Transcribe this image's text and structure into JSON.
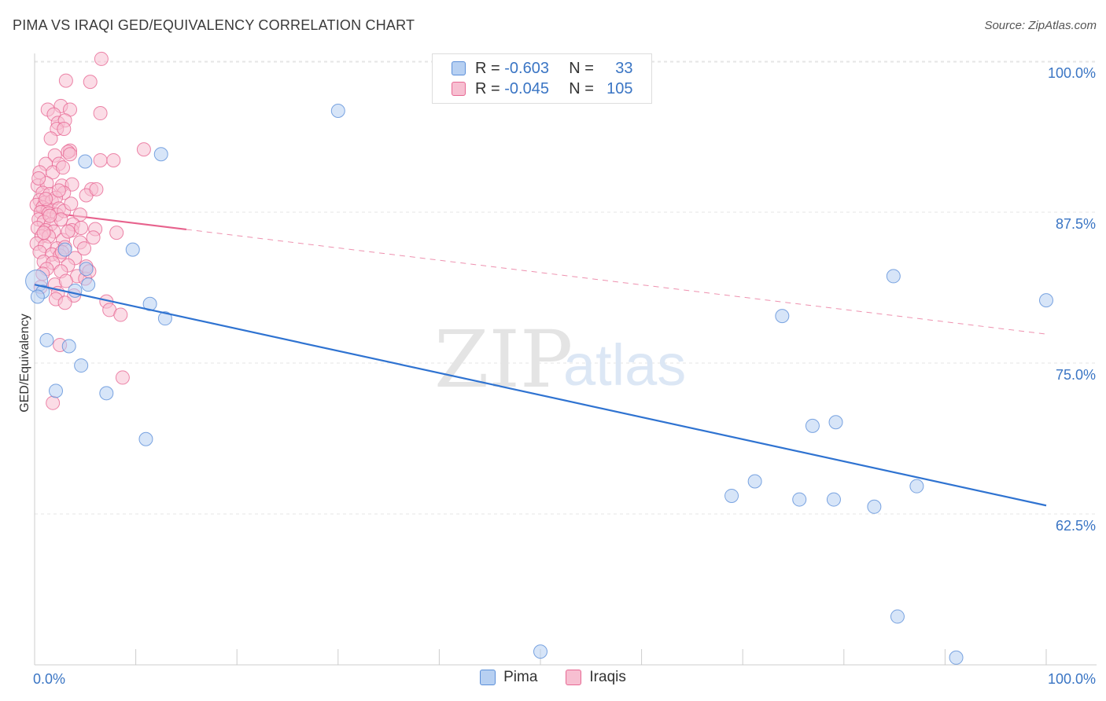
{
  "chart_data": {
    "type": "scatter",
    "title": "PIMA VS IRAQI GED/EQUIVALENCY CORRELATION CHART",
    "source": "Source: ZipAtlas.com",
    "xlabel": "",
    "ylabel": "GED/Equivalency",
    "xlim": [
      0,
      100
    ],
    "ylim": [
      49,
      101
    ],
    "x_tick_labels": [
      "0.0%",
      "100.0%"
    ],
    "y_ticks": [
      {
        "value": 100,
        "label": "100.0%"
      },
      {
        "value": 87.5,
        "label": "87.5%"
      },
      {
        "value": 75,
        "label": "75.0%"
      },
      {
        "value": 62.5,
        "label": "62.5%"
      }
    ],
    "watermark": {
      "zip": "ZIP",
      "atlas": "atlas"
    },
    "series": [
      {
        "name": "Pima",
        "color": "#5b8fd9",
        "fill": "#b7d0f2",
        "R": "-0.603",
        "N": "33",
        "trend": {
          "x0": 0,
          "y0": 81.5,
          "x1": 100,
          "y1": 63.2,
          "dashed_from": null
        },
        "points": [
          [
            0.2,
            81.8
          ],
          [
            0.8,
            80.9
          ],
          [
            1.2,
            76.9
          ],
          [
            3.4,
            76.4
          ],
          [
            2.1,
            72.7
          ],
          [
            4.0,
            81.0
          ],
          [
            5.3,
            81.5
          ],
          [
            5.1,
            82.8
          ],
          [
            3.0,
            84.4
          ],
          [
            4.6,
            74.8
          ],
          [
            7.1,
            72.5
          ],
          [
            9.7,
            84.4
          ],
          [
            11.4,
            79.9
          ],
          [
            12.9,
            78.7
          ],
          [
            11.0,
            68.7
          ],
          [
            12.5,
            92.3
          ],
          [
            5.0,
            91.7
          ],
          [
            30.0,
            95.9
          ],
          [
            50.0,
            51.1
          ],
          [
            68.9,
            64.0
          ],
          [
            71.2,
            65.2
          ],
          [
            73.9,
            78.9
          ],
          [
            75.6,
            63.7
          ],
          [
            76.9,
            69.8
          ],
          [
            79.0,
            63.7
          ],
          [
            79.2,
            70.1
          ],
          [
            83.0,
            63.1
          ],
          [
            84.9,
            82.2
          ],
          [
            85.3,
            54.0
          ],
          [
            87.2,
            64.8
          ],
          [
            91.1,
            50.6
          ],
          [
            100.0,
            80.2
          ],
          [
            0.3,
            80.5
          ]
        ]
      },
      {
        "name": "Iraqis",
        "color": "#e76893",
        "fill": "#f7bfd1",
        "R": "-0.045",
        "N": "105",
        "trend": {
          "x0": 0,
          "y0": 87.6,
          "x1": 100,
          "y1": 77.4,
          "solid_to": 15
        },
        "points": [
          [
            6.6,
            100.2
          ],
          [
            3.1,
            98.4
          ],
          [
            5.5,
            98.3
          ],
          [
            1.3,
            96.0
          ],
          [
            2.6,
            96.3
          ],
          [
            3.5,
            96.0
          ],
          [
            1.9,
            95.6
          ],
          [
            6.5,
            95.7
          ],
          [
            2.3,
            94.9
          ],
          [
            3.0,
            95.1
          ],
          [
            2.2,
            94.4
          ],
          [
            2.9,
            94.4
          ],
          [
            3.5,
            92.6
          ],
          [
            3.3,
            92.5
          ],
          [
            10.8,
            92.7
          ],
          [
            2.0,
            92.2
          ],
          [
            1.1,
            91.5
          ],
          [
            2.4,
            91.5
          ],
          [
            6.5,
            91.8
          ],
          [
            7.8,
            91.8
          ],
          [
            0.5,
            90.8
          ],
          [
            1.8,
            90.8
          ],
          [
            2.8,
            91.2
          ],
          [
            0.3,
            89.7
          ],
          [
            1.2,
            89.9
          ],
          [
            2.7,
            89.7
          ],
          [
            3.7,
            89.8
          ],
          [
            5.6,
            89.4
          ],
          [
            0.8,
            89.1
          ],
          [
            1.5,
            89.0
          ],
          [
            2.9,
            89.1
          ],
          [
            5.1,
            88.9
          ],
          [
            0.5,
            88.5
          ],
          [
            1.0,
            88.3
          ],
          [
            1.7,
            88.4
          ],
          [
            2.1,
            88.7
          ],
          [
            0.2,
            88.1
          ],
          [
            0.8,
            87.9
          ],
          [
            1.3,
            87.7
          ],
          [
            2.4,
            87.8
          ],
          [
            0.6,
            87.5
          ],
          [
            1.4,
            87.4
          ],
          [
            2.2,
            87.3
          ],
          [
            2.9,
            87.6
          ],
          [
            4.5,
            87.3
          ],
          [
            0.4,
            86.9
          ],
          [
            0.9,
            86.7
          ],
          [
            1.6,
            86.5
          ],
          [
            2.6,
            86.9
          ],
          [
            3.8,
            86.5
          ],
          [
            0.3,
            86.2
          ],
          [
            1.1,
            86.0
          ],
          [
            1.9,
            85.9
          ],
          [
            3.7,
            86.0
          ],
          [
            6.0,
            86.1
          ],
          [
            0.7,
            85.5
          ],
          [
            1.4,
            85.5
          ],
          [
            2.8,
            85.2
          ],
          [
            8.1,
            85.8
          ],
          [
            0.2,
            84.9
          ],
          [
            1.0,
            84.7
          ],
          [
            2.2,
            84.5
          ],
          [
            3.0,
            84.6
          ],
          [
            4.5,
            85.0
          ],
          [
            0.5,
            84.2
          ],
          [
            1.7,
            84.0
          ],
          [
            2.5,
            83.9
          ],
          [
            4.0,
            83.7
          ],
          [
            0.9,
            83.4
          ],
          [
            1.8,
            83.3
          ],
          [
            3.3,
            83.1
          ],
          [
            5.1,
            83.0
          ],
          [
            1.2,
            82.8
          ],
          [
            2.6,
            82.6
          ],
          [
            4.2,
            82.2
          ],
          [
            5.0,
            82.0
          ],
          [
            2.0,
            81.5
          ],
          [
            3.1,
            81.8
          ],
          [
            0.6,
            81.3
          ],
          [
            2.3,
            80.8
          ],
          [
            3.9,
            80.6
          ],
          [
            7.1,
            80.1
          ],
          [
            2.1,
            80.3
          ],
          [
            3.0,
            80.0
          ],
          [
            7.4,
            79.4
          ],
          [
            8.5,
            79.0
          ],
          [
            2.5,
            76.5
          ],
          [
            8.7,
            73.8
          ],
          [
            1.8,
            71.7
          ],
          [
            3.5,
            92.3
          ],
          [
            1.6,
            93.6
          ],
          [
            4.9,
            84.5
          ],
          [
            6.1,
            89.4
          ],
          [
            0.4,
            90.3
          ],
          [
            2.4,
            89.3
          ],
          [
            1.1,
            88.6
          ],
          [
            3.6,
            88.2
          ],
          [
            5.8,
            85.4
          ],
          [
            0.8,
            82.4
          ],
          [
            3.3,
            85.9
          ],
          [
            4.6,
            86.2
          ],
          [
            1.5,
            87.2
          ],
          [
            0.9,
            85.8
          ],
          [
            2.7,
            84.2
          ],
          [
            5.4,
            82.6
          ]
        ]
      }
    ],
    "legend_bottom": [
      "Pima",
      "Iraqis"
    ]
  },
  "legend_top": {
    "r_label": "R =",
    "n_label": "N =",
    "rows": [
      {
        "r": "-0.603",
        "n": "33"
      },
      {
        "r": "-0.045",
        "n": "105"
      }
    ]
  }
}
